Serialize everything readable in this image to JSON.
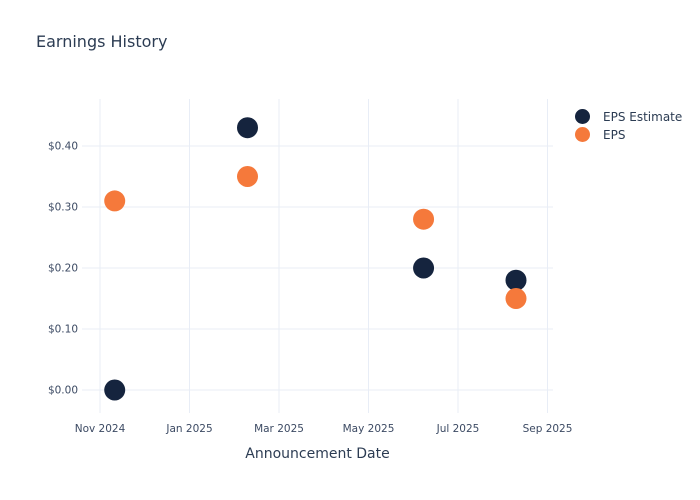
{
  "title": "Earnings History",
  "colors": {
    "background": "#ffffff",
    "title_text": "#2c3c53",
    "tick_text": "#3c4a63",
    "grid": "#e8edf6",
    "eps_estimate": "#15243e",
    "eps": "#f5793b"
  },
  "legend": {
    "items": [
      {
        "label": "EPS Estimate",
        "color": "#15243e"
      },
      {
        "label": "EPS",
        "color": "#f5793b"
      }
    ]
  },
  "chart_data": {
    "type": "scatter",
    "title": "Earnings History",
    "xlabel": "Announcement Date",
    "ylabel": "",
    "grid": true,
    "grid_color": "#e8edf6",
    "legend_position": "outside-top-right",
    "marker_radius": 10.5,
    "x_tick_labels": [
      "Nov 2024",
      "Jan 2025",
      "Mar 2025",
      "May 2025",
      "Jul 2025",
      "Sep 2025"
    ],
    "x_tick_month_offsets": [
      0,
      2,
      4,
      6,
      8,
      10
    ],
    "y_tick_labels": [
      "$0.00",
      "$0.10",
      "$0.20",
      "$0.30",
      "$0.40"
    ],
    "y_tick_values": [
      0.0,
      0.1,
      0.2,
      0.3,
      0.4
    ],
    "ylim": [
      -0.036,
      0.477
    ],
    "series": [
      {
        "name": "EPS Estimate",
        "color": "#15243e",
        "points": [
          {
            "date": "2024-11-11",
            "value": 0.0
          },
          {
            "date": "2025-02-10",
            "value": 0.43
          },
          {
            "date": "2025-06-08",
            "value": 0.2
          },
          {
            "date": "2025-08-10",
            "value": 0.18
          }
        ]
      },
      {
        "name": "EPS",
        "color": "#f5793b",
        "points": [
          {
            "date": "2024-11-11",
            "value": 0.31
          },
          {
            "date": "2025-02-10",
            "value": 0.35
          },
          {
            "date": "2025-06-08",
            "value": 0.28
          },
          {
            "date": "2025-08-10",
            "value": 0.15
          }
        ]
      }
    ]
  }
}
